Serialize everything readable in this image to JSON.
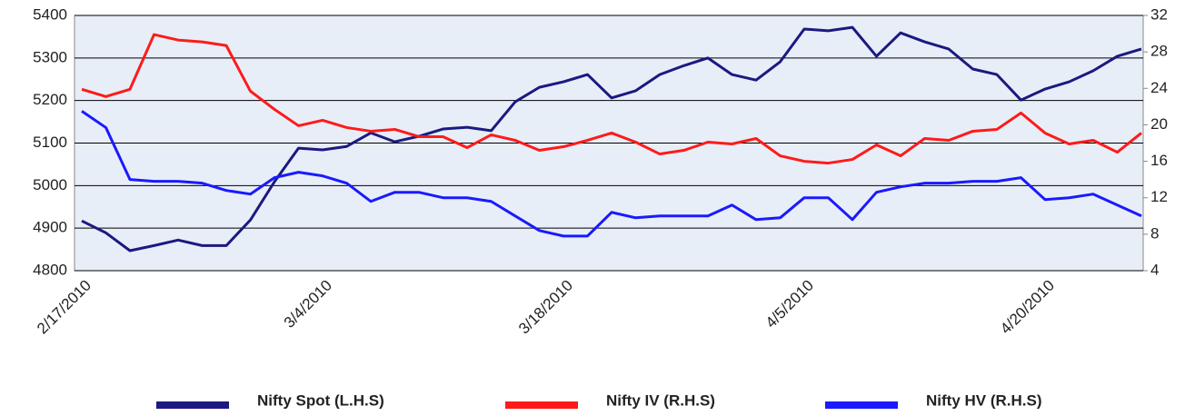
{
  "chart_data": {
    "type": "line",
    "categories": [
      "2/17/2010",
      null,
      null,
      null,
      null,
      null,
      null,
      null,
      null,
      null,
      "3/4/2010",
      null,
      null,
      null,
      null,
      null,
      null,
      null,
      null,
      null,
      "3/18/2010",
      null,
      null,
      null,
      null,
      null,
      null,
      null,
      null,
      null,
      "4/5/2010",
      null,
      null,
      null,
      null,
      null,
      null,
      null,
      null,
      null,
      "4/20/2010",
      null,
      null,
      null,
      null
    ],
    "series": [
      {
        "name": "Nifty Spot (L.H.S)",
        "color": "#1a1a80",
        "values": [
          4917,
          4889,
          4847,
          4859,
          4872,
          4859,
          4859,
          4919,
          5009,
          5088,
          5084,
          5092,
          5124,
          5103,
          5116,
          5133,
          5137,
          5129,
          5197,
          5231,
          5244,
          5261,
          5206,
          5223,
          5261,
          5282,
          5300,
          5261,
          5248,
          5291,
          5368,
          5364,
          5372,
          5304,
          5359,
          5338,
          5321,
          5274,
          5261,
          5201,
          5227,
          5244,
          5270,
          5304,
          5321
        ]
      },
      {
        "name": "Nifty IV (R.H.S)",
        "color": "#ff1a1a",
        "axis": "y2",
        "values": [
          23.9,
          23.1,
          23.9,
          29.9,
          29.3,
          29.1,
          28.7,
          23.7,
          21.7,
          19.9,
          20.5,
          19.7,
          19.3,
          19.5,
          18.7,
          18.7,
          17.5,
          18.9,
          18.3,
          17.2,
          17.6,
          18.3,
          19.1,
          18.1,
          16.8,
          17.2,
          18.1,
          17.9,
          18.5,
          16.6,
          16.0,
          15.8,
          16.2,
          17.8,
          16.6,
          18.5,
          18.3,
          19.3,
          19.5,
          21.3,
          19.1,
          17.9,
          18.3,
          17.0,
          19.1
        ]
      },
      {
        "name": "Nifty HV (R.H.S)",
        "color": "#1a1aff",
        "axis": "y2",
        "values": [
          21.5,
          19.7,
          14.0,
          13.8,
          13.8,
          13.6,
          12.8,
          12.4,
          14.2,
          14.8,
          14.4,
          13.6,
          11.6,
          12.6,
          12.6,
          12.0,
          12.0,
          11.6,
          10.0,
          8.4,
          7.8,
          7.8,
          10.4,
          9.8,
          10.0,
          10.0,
          10.0,
          11.2,
          9.6,
          9.8,
          12.0,
          12.0,
          9.6,
          12.6,
          13.2,
          13.6,
          13.6,
          13.8,
          13.8,
          14.2,
          11.8,
          12.0,
          12.4,
          11.2,
          10.0
        ]
      }
    ],
    "ylim": [
      4800,
      5400
    ],
    "yticks": [
      4800,
      4900,
      5000,
      5100,
      5200,
      5300,
      5400
    ],
    "y2lim": [
      4,
      32
    ],
    "y2ticks": [
      4,
      8,
      12,
      16,
      20,
      24,
      28,
      32
    ],
    "grid": true,
    "legend": "bottom"
  }
}
